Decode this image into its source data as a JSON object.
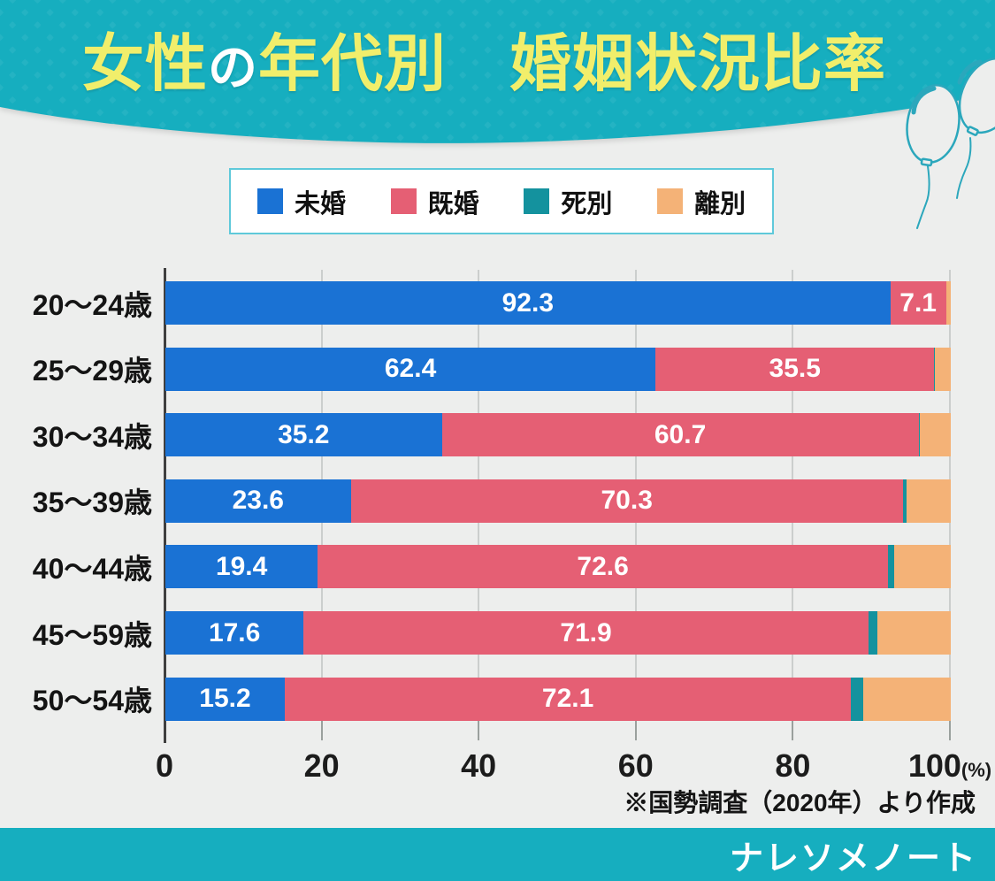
{
  "palette": {
    "teal": "#16aebf",
    "bg": "#edeeed",
    "yellow": "#f1ee6b",
    "grid": "#cbcecd",
    "tickmark": "#9aa09d",
    "axis": "#3f3f3f",
    "legend_border": "#5fc9da",
    "balloon_line": "#2ba7bc"
  },
  "header": {
    "title_parts": [
      {
        "text": "女性",
        "color": "#f1ee6b",
        "small": false
      },
      {
        "text": "の",
        "color": "#ffffff",
        "small": true
      },
      {
        "text": "年代別",
        "color": "#f1ee6b",
        "small": false
      },
      {
        "text": "　",
        "color": "#f1ee6b",
        "small": false
      },
      {
        "text": "婚姻状況比率",
        "color": "#f1ee6b",
        "small": false
      }
    ]
  },
  "chart_data": {
    "type": "bar",
    "orientation": "horizontal",
    "stacked": true,
    "title": "女性の年代別 婚姻状況比率",
    "categories": [
      "20〜24歳",
      "25〜29歳",
      "30〜34歳",
      "35〜39歳",
      "40〜44歳",
      "45〜59歳",
      "50〜54歳"
    ],
    "series": [
      {
        "name": "未婚",
        "key": "unmarried",
        "color": "#1a72d4",
        "show_labels": true,
        "values": [
          92.3,
          62.4,
          35.2,
          23.6,
          19.4,
          17.6,
          15.2
        ]
      },
      {
        "name": "既婚",
        "key": "married",
        "color": "#e55f74",
        "show_labels": true,
        "values": [
          7.1,
          35.5,
          60.7,
          70.3,
          72.6,
          71.9,
          72.1
        ]
      },
      {
        "name": "死別",
        "key": "widowed",
        "color": "#14929e",
        "show_labels": false,
        "values": [
          0,
          0.1,
          0.2,
          0.5,
          0.8,
          1.2,
          1.6
        ]
      },
      {
        "name": "離別",
        "key": "divorced",
        "color": "#f4b277",
        "show_labels": false,
        "values": [
          0.6,
          2.0,
          3.9,
          5.6,
          7.2,
          9.3,
          11.1
        ]
      }
    ],
    "xlim": [
      0,
      100
    ],
    "xticks": [
      0,
      20,
      40,
      60,
      80,
      100
    ],
    "xtick_unit": "(%)",
    "grid": true,
    "legend_position": "top"
  },
  "source_note": "※国勢調査（2020年）より作成",
  "footer": {
    "brand": "ナレソメノート"
  }
}
